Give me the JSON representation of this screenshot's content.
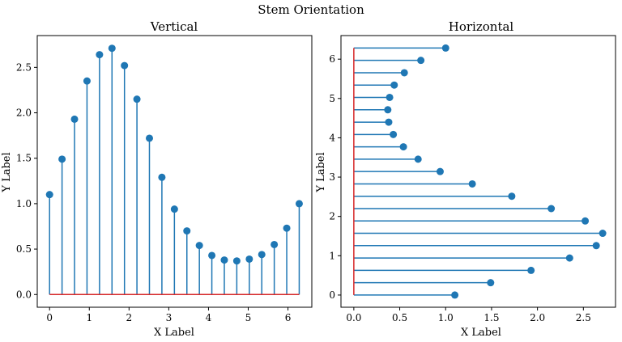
{
  "figure": {
    "suptitle": "Stem Orientation"
  },
  "chart_data": [
    {
      "type": "stem",
      "title": "Vertical",
      "xlabel": "X Label",
      "ylabel": "Y Label",
      "orientation": "vertical",
      "xlim": [
        -0.31,
        6.6
      ],
      "ylim": [
        -0.14,
        2.85
      ],
      "xticks": [
        0,
        1,
        2,
        3,
        4,
        5,
        6
      ],
      "yticks": [
        0.0,
        0.5,
        1.0,
        1.5,
        2.0,
        2.5
      ],
      "ytick_labels": [
        "0.0",
        "0.5",
        "1.0",
        "1.5",
        "2.0",
        "2.5"
      ],
      "baseline": 0,
      "x": [
        0.0,
        0.314,
        0.628,
        0.942,
        1.257,
        1.571,
        1.885,
        2.199,
        2.513,
        2.827,
        3.142,
        3.456,
        3.77,
        4.084,
        4.398,
        4.712,
        5.027,
        5.341,
        5.655,
        5.969,
        6.283
      ],
      "y": [
        1.1,
        1.49,
        1.93,
        2.35,
        2.64,
        2.71,
        2.52,
        2.15,
        1.72,
        1.29,
        0.94,
        0.7,
        0.54,
        0.43,
        0.38,
        0.37,
        0.39,
        0.44,
        0.55,
        0.73,
        1.0
      ],
      "colors": {
        "stem": "#1f77b4",
        "marker": "#1f77b4",
        "baseline": "#d62728"
      }
    },
    {
      "type": "stem",
      "title": "Horizontal",
      "xlabel": "X Label",
      "ylabel": "Y Label",
      "orientation": "horizontal",
      "xlim": [
        -0.14,
        2.85
      ],
      "ylim": [
        -0.31,
        6.6
      ],
      "xticks": [
        0.0,
        0.5,
        1.0,
        1.5,
        2.0,
        2.5
      ],
      "xtick_labels": [
        "0.0",
        "0.5",
        "1.0",
        "1.5",
        "2.0",
        "2.5"
      ],
      "yticks": [
        0,
        1,
        2,
        3,
        4,
        5,
        6
      ],
      "baseline": 0,
      "y": [
        0.0,
        0.314,
        0.628,
        0.942,
        1.257,
        1.571,
        1.885,
        2.199,
        2.513,
        2.827,
        3.142,
        3.456,
        3.77,
        4.084,
        4.398,
        4.712,
        5.027,
        5.341,
        5.655,
        5.969,
        6.283
      ],
      "x": [
        1.1,
        1.49,
        1.93,
        2.35,
        2.64,
        2.71,
        2.52,
        2.15,
        1.72,
        1.29,
        0.94,
        0.7,
        0.54,
        0.43,
        0.38,
        0.37,
        0.39,
        0.44,
        0.55,
        0.73,
        1.0
      ],
      "colors": {
        "stem": "#1f77b4",
        "marker": "#1f77b4",
        "baseline": "#d62728"
      }
    }
  ]
}
